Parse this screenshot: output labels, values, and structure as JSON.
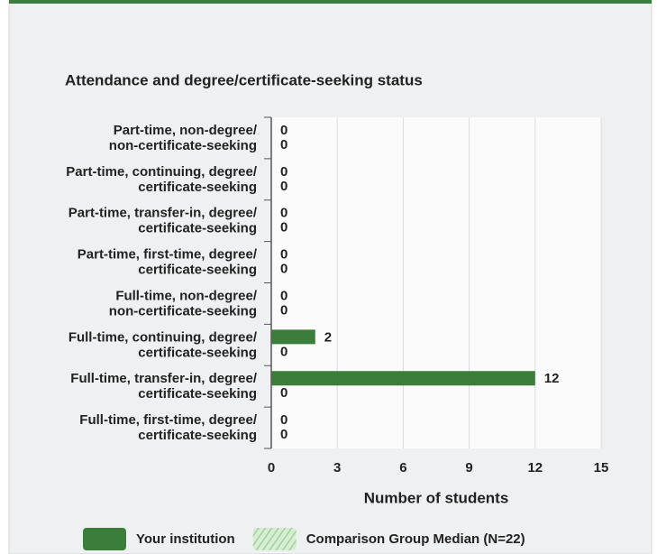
{
  "chart_data": {
    "type": "hbar",
    "title": "Attendance and degree/certificate-seeking status",
    "xlabel": "Number of students",
    "categories": [
      [
        "Part-time, non-degree/",
        "non-certificate-seeking"
      ],
      [
        "Part-time, continuing, degree/",
        "certificate-seeking"
      ],
      [
        "Part-time, transfer-in, degree/",
        "certificate-seeking"
      ],
      [
        "Part-time, first-time, degree/",
        "certificate-seeking"
      ],
      [
        "Full-time, non-degree/",
        "non-certificate-seeking"
      ],
      [
        "Full-time, continuing, degree/",
        "certificate-seeking"
      ],
      [
        "Full-time, transfer-in, degree/",
        "certificate-seeking"
      ],
      [
        "Full-time, first-time, degree/",
        "certificate-seeking"
      ]
    ],
    "series": [
      {
        "name": "Your institution",
        "color": "#3b7d3b",
        "values": [
          0,
          0,
          0,
          0,
          0,
          2,
          12,
          0
        ]
      },
      {
        "name": "Comparison Group Median (N=22)",
        "color": "#9fd19a",
        "values": [
          0,
          0,
          0,
          0,
          0,
          0,
          0,
          0
        ]
      }
    ],
    "xlim": [
      0,
      15
    ],
    "xticks": [
      0,
      3,
      6,
      9,
      12,
      15
    ],
    "grid": true
  }
}
